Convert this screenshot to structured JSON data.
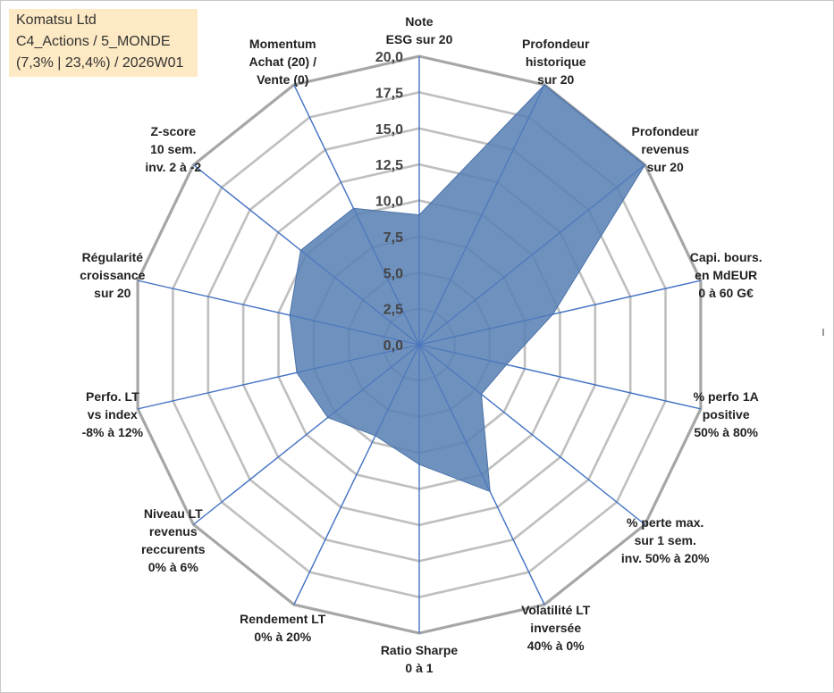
{
  "info": {
    "line1": "Komatsu Ltd",
    "line2": "C4_Actions / 5_MONDE",
    "line3": "(7,3% | 23,4%) / 2026W01"
  },
  "colors": {
    "fill": "#5b82b5",
    "fill_stroke": "#4a72a8",
    "spoke": "#4472c4",
    "grid": "#bfbfbf",
    "outer_grid": "#a6a6a6",
    "info_bg": "#fde9c3"
  },
  "chart_data": {
    "type": "radar",
    "rmin": 0,
    "rmax": 20,
    "tick_step": 2.5,
    "ticks": [
      "0,0",
      "2,5",
      "5,0",
      "7,5",
      "10,0",
      "12,5",
      "15,0",
      "17,5",
      "20,0"
    ],
    "axes": [
      {
        "label": [
          "Note",
          "ESG sur 20"
        ],
        "value": 9.0
      },
      {
        "label": [
          "Profondeur",
          "historique",
          "sur 20"
        ],
        "value": 20.0
      },
      {
        "label": [
          "Profondeur",
          "revenus",
          "sur 20"
        ],
        "value": 20.0
      },
      {
        "label": [
          "Capi. bours.",
          "en MdEUR",
          "0 à 60 G€"
        ],
        "value": 9.5
      },
      {
        "label": [
          "% perfo 1A",
          "positive",
          "50% à 80%"
        ],
        "value": 6.2
      },
      {
        "label": [
          "% perte max.",
          "sur 1 sem.",
          "inv. 50% à 20%"
        ],
        "value": 5.5
      },
      {
        "label": [
          "Volatilité LT",
          "inversée",
          "40% à 0%"
        ],
        "value": 11.3
      },
      {
        "label": [
          "Ratio Sharpe",
          "0 à 1"
        ],
        "value": 8.3
      },
      {
        "label": [
          "Rendement LT",
          "0% à 20%"
        ],
        "value": 7.0
      },
      {
        "label": [
          "Niveau LT",
          "revenus",
          "reccurents",
          "0% à 6%"
        ],
        "value": 8.1
      },
      {
        "label": [
          "Perfo. LT",
          "vs index",
          "-8% à 12%"
        ],
        "value": 8.7
      },
      {
        "label": [
          "Régularité",
          "croissance",
          "sur 20"
        ],
        "value": 9.2
      },
      {
        "label": [
          "Z-score",
          "10 sem.",
          "inv. 2 à -2"
        ],
        "value": 10.5
      },
      {
        "label": [
          "Momentum",
          "Achat (20) /",
          "Vente (0)"
        ],
        "value": 10.5
      }
    ]
  }
}
